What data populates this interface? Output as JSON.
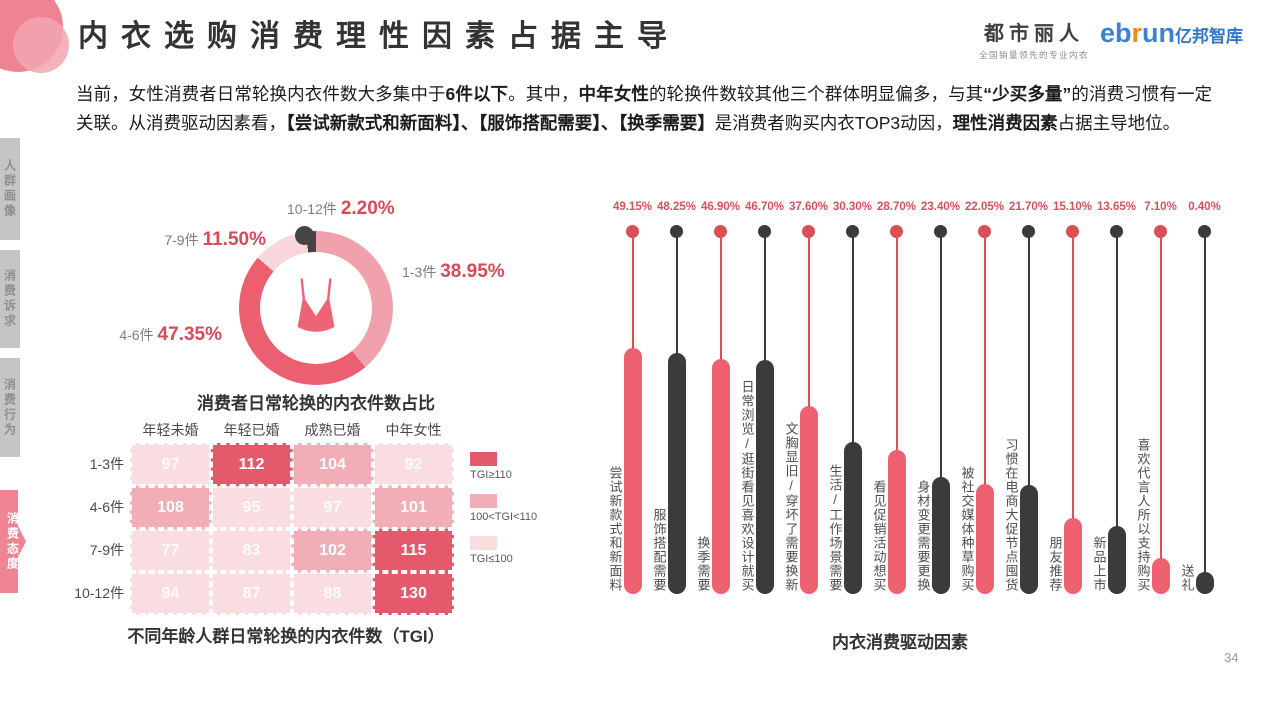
{
  "header": {
    "title": "内衣选购消费理性因素占据主导",
    "logo_dushi": {
      "name": "都市丽人",
      "tagline": "全国销量领先的专业内衣"
    },
    "logo_ebrun": {
      "part1": "eb",
      "part2": "r",
      "part3": "un",
      "suffix": "亿邦智库"
    }
  },
  "sidebar": {
    "tabs": [
      {
        "label": "人群画像",
        "active": false
      },
      {
        "label": "消费诉求",
        "active": false
      },
      {
        "label": "消费行为",
        "active": false
      },
      {
        "label": "消费态度",
        "active": true
      }
    ]
  },
  "intro": {
    "segments": [
      {
        "text": "当前，女性消费者日常轮换内衣件数大多集中于",
        "bold": false
      },
      {
        "text": "6件以下",
        "bold": true
      },
      {
        "text": "。其中，",
        "bold": false
      },
      {
        "text": "中年女性",
        "bold": true
      },
      {
        "text": "的轮换件数较其他三个群体明显偏多，与其",
        "bold": false
      },
      {
        "text": "“少买多量”",
        "bold": true
      },
      {
        "text": "的消费习惯有一定关联。从消费驱动因素看，",
        "bold": false
      },
      {
        "text": "【尝试新款式和新面料】、【服饰搭配需要】、【换季需要】",
        "bold": true
      },
      {
        "text": "是消费者购买内衣TOP3动因，",
        "bold": false
      },
      {
        "text": "理性消费因素",
        "bold": true
      },
      {
        "text": "占据主导地位。",
        "bold": false
      }
    ]
  },
  "page": {
    "number": "34"
  },
  "colors": {
    "accent_red": "#eb5f70",
    "dark_bar": "#3b3b3d",
    "red_bar": "#ee6170",
    "red_dot": "#dc4f58",
    "pct_text": "#d9505a"
  },
  "chart_data": [
    {
      "id": "rotation-share-donut",
      "type": "pie",
      "title": "消费者日常轮换的内衣件数占比",
      "labels": [
        "1-3件",
        "4-6件",
        "7-9件",
        "10-12件"
      ],
      "values": [
        38.95,
        47.35,
        11.5,
        2.2
      ],
      "display": [
        "38.95%",
        "47.35%",
        "11.50%",
        "2.20%"
      ],
      "colors": [
        "#f0a1ac",
        "#eb5f70",
        "#f8d8dc",
        "#454548"
      ],
      "center_icon": "bra-icon",
      "legend_position": "around"
    },
    {
      "id": "tgi-heatmap",
      "type": "heatmap",
      "title": "不同年龄人群日常轮换的内衣件数（TGI）",
      "columns": [
        "年轻未婚",
        "年轻已婚",
        "成熟已婚",
        "中年女性"
      ],
      "rows": [
        "1-3件",
        "4-6件",
        "7-9件",
        "10-12件"
      ],
      "values": [
        [
          97,
          112,
          104,
          92
        ],
        [
          108,
          95,
          97,
          101
        ],
        [
          77,
          83,
          102,
          115
        ],
        [
          94,
          87,
          88,
          130
        ]
      ],
      "legend": [
        {
          "label": "TGI≥110",
          "color": "#e4596b"
        },
        {
          "label": "100<TGI<110",
          "color": "#f2aeb7"
        },
        {
          "label": "TGI≤100",
          "color": "#fadde1"
        }
      ]
    },
    {
      "id": "purchase-drivers",
      "type": "bar",
      "title": "内衣消费驱动因素",
      "categories": [
        "尝试新款式和新面料",
        "服饰搭配需要",
        "换季需要",
        "日常浏览/逛街看见喜欢设计就买",
        "文胸显旧/穿坏了需要换新",
        "生活/工作场景需要",
        "看见促销活动想买",
        "身材变更需要更换",
        "被社交媒体种草购买",
        "习惯在电商大促节点囤货",
        "朋友推荐",
        "新品上市",
        "喜欢代言人所以支持购买",
        "送礼"
      ],
      "values": [
        49.15,
        48.25,
        46.9,
        46.7,
        37.6,
        30.3,
        28.7,
        23.4,
        22.05,
        21.7,
        15.1,
        13.65,
        7.1,
        0.4
      ],
      "display": [
        "49.15%",
        "48.25%",
        "46.90%",
        "46.70%",
        "37.60%",
        "30.30%",
        "28.70%",
        "23.40%",
        "22.05%",
        "21.70%",
        "15.10%",
        "13.65%",
        "7.10%",
        "0.40%"
      ],
      "bar_colors": [
        "red",
        "dark",
        "red",
        "dark",
        "red",
        "dark",
        "red",
        "dark",
        "red",
        "dark",
        "red",
        "dark",
        "red",
        "dark"
      ],
      "ylim": [
        0,
        50
      ],
      "grid": false
    }
  ]
}
